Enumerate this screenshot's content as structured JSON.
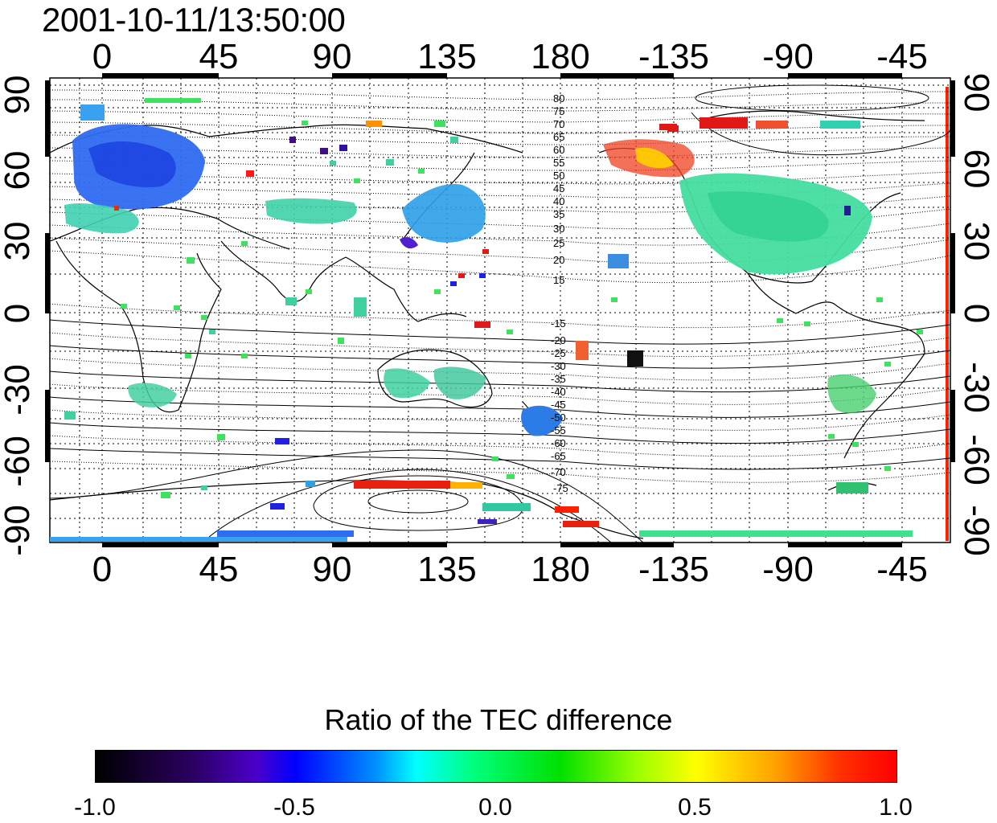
{
  "header": {
    "timestamp": "2001-10-11/13:50:00"
  },
  "map": {
    "lon_ticks": [
      "0",
      "45",
      "90",
      "135",
      "180",
      "-135",
      "-90",
      "-45"
    ],
    "lat_ticks": [
      "90",
      "60",
      "30",
      "0",
      "-30",
      "-60",
      "-90"
    ],
    "contour_labels_north": [
      "80",
      "75",
      "70",
      "65",
      "60",
      "55",
      "50",
      "45",
      "40",
      "35",
      "30",
      "25",
      "20",
      "15"
    ],
    "contour_labels_south": [
      "-15",
      "-20",
      "-25",
      "-30",
      "-35",
      "-40",
      "-45",
      "-50",
      "-55",
      "-60",
      "-65",
      "-70",
      "-75"
    ]
  },
  "colorbar": {
    "title": "Ratio of the TEC difference",
    "min": -1.0,
    "max": 1.0,
    "tick_labels": [
      "-1.0",
      "-0.5",
      "0.0",
      "0.5",
      "1.0"
    ],
    "colors": [
      "#000000",
      "#4b00c8",
      "#0000ff",
      "#00ffff",
      "#00e000",
      "#ffff00",
      "#ff0000"
    ]
  }
}
